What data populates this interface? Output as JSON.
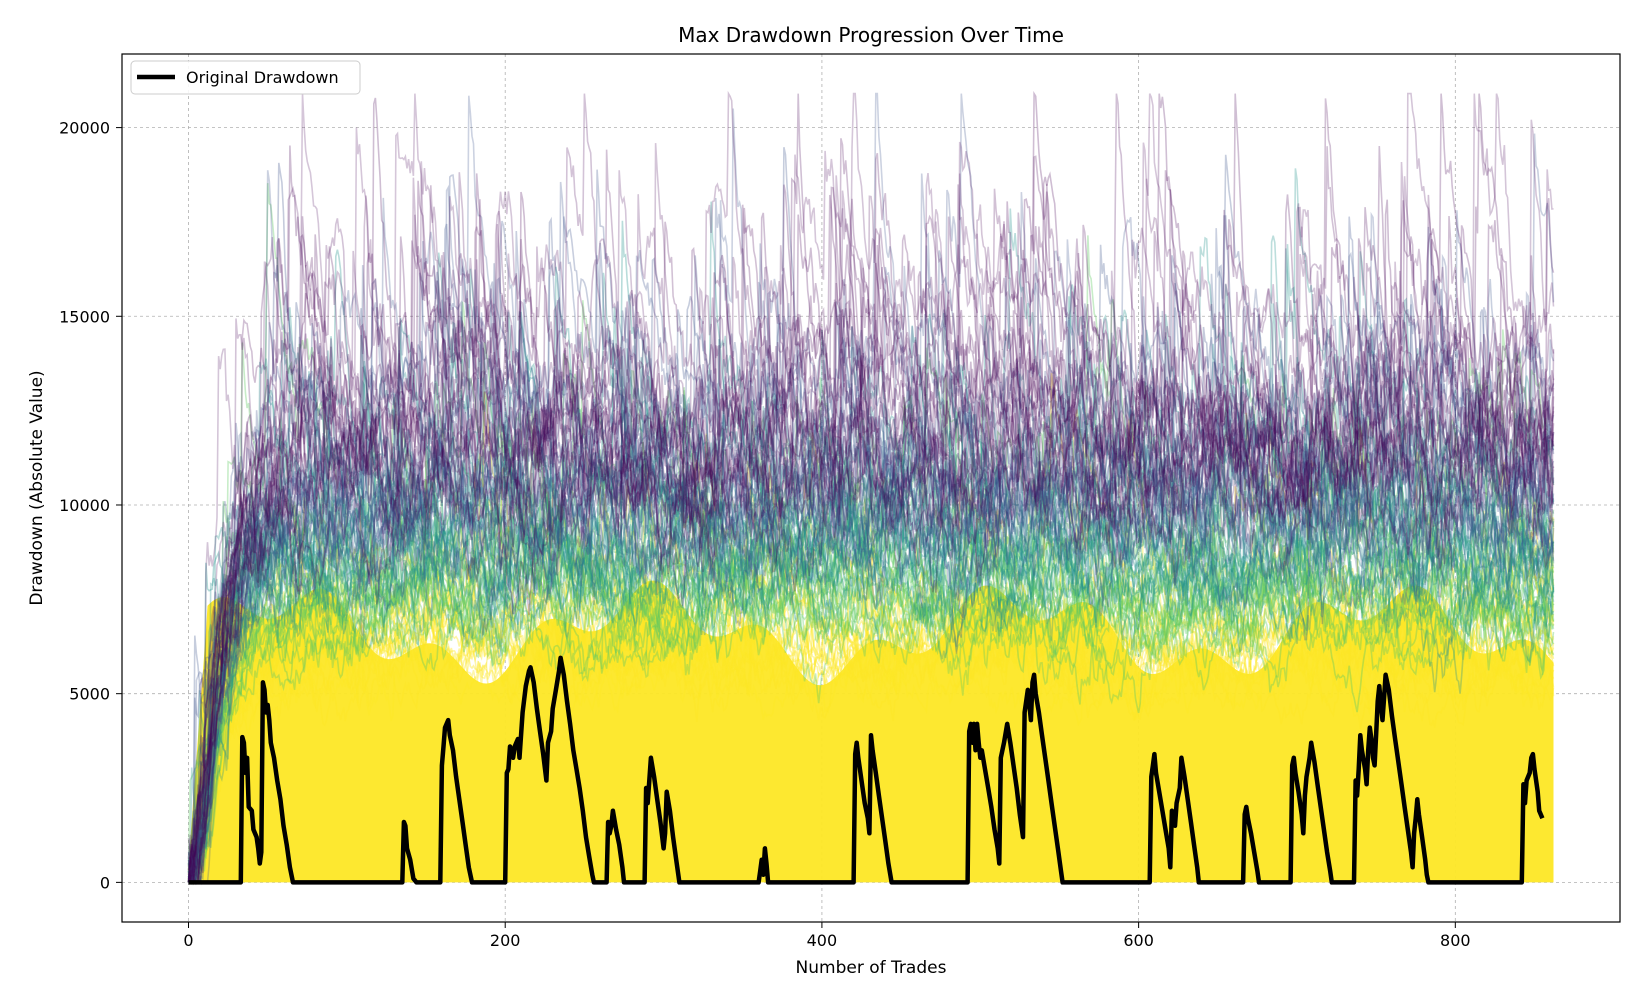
{
  "chart_data": {
    "type": "line",
    "title": "Max Drawdown Progression Over Time",
    "xlabel": "Number of Trades",
    "ylabel": "Drawdown (Absolute Value)",
    "xlim": [
      -42,
      904
    ],
    "ylim": [
      -1050,
      21950
    ],
    "x_ticks": [
      0,
      200,
      400,
      600,
      800
    ],
    "y_ticks": [
      0,
      5000,
      10000,
      15000,
      20000
    ],
    "grid": true,
    "legend": {
      "location": "upper-left",
      "entries": [
        {
          "label": "Original Drawdown",
          "color": "#000000"
        }
      ]
    },
    "simulations": {
      "description": "Monte Carlo resampled drawdown paths colored with viridis by final rank",
      "count_drawn": 110,
      "n_trades": 862,
      "typical_level_after_warmup": [
        0,
        14000
      ],
      "peak_observed": 20900,
      "colormap": [
        "#440154",
        "#3b528b",
        "#21918c",
        "#5ec962",
        "#fde725"
      ]
    },
    "series": [
      {
        "name": "Original Drawdown",
        "color": "#000000",
        "points": [
          [
            0,
            0
          ],
          [
            33,
            0
          ],
          [
            34,
            3850
          ],
          [
            35,
            3700
          ],
          [
            36,
            2900
          ],
          [
            37,
            3300
          ],
          [
            38,
            2000
          ],
          [
            40,
            1900
          ],
          [
            41,
            1400
          ],
          [
            43,
            1200
          ],
          [
            44,
            900
          ],
          [
            45,
            500
          ],
          [
            46,
            800
          ],
          [
            47,
            5300
          ],
          [
            48,
            5100
          ],
          [
            49,
            4500
          ],
          [
            50,
            4700
          ],
          [
            51,
            4300
          ],
          [
            52,
            3700
          ],
          [
            54,
            3300
          ],
          [
            56,
            2700
          ],
          [
            58,
            2200
          ],
          [
            60,
            1500
          ],
          [
            62,
            1000
          ],
          [
            64,
            400
          ],
          [
            66,
            0
          ],
          [
            135,
            0
          ],
          [
            136,
            1600
          ],
          [
            137,
            1500
          ],
          [
            138,
            900
          ],
          [
            140,
            600
          ],
          [
            142,
            100
          ],
          [
            144,
            0
          ],
          [
            159,
            0
          ],
          [
            160,
            3100
          ],
          [
            161,
            3600
          ],
          [
            162,
            4100
          ],
          [
            164,
            4300
          ],
          [
            165,
            3900
          ],
          [
            167,
            3500
          ],
          [
            169,
            2800
          ],
          [
            171,
            2200
          ],
          [
            173,
            1600
          ],
          [
            175,
            1000
          ],
          [
            177,
            400
          ],
          [
            179,
            0
          ],
          [
            200,
            0
          ],
          [
            201,
            2900
          ],
          [
            202,
            3000
          ],
          [
            203,
            3600
          ],
          [
            205,
            3300
          ],
          [
            206,
            3600
          ],
          [
            208,
            3800
          ],
          [
            209,
            3300
          ],
          [
            211,
            4500
          ],
          [
            213,
            5200
          ],
          [
            215,
            5600
          ],
          [
            216,
            5700
          ],
          [
            218,
            5300
          ],
          [
            220,
            4600
          ],
          [
            222,
            4000
          ],
          [
            224,
            3400
          ],
          [
            226,
            2700
          ],
          [
            227,
            3700
          ],
          [
            229,
            4000
          ],
          [
            230,
            4600
          ],
          [
            232,
            5100
          ],
          [
            234,
            5600
          ],
          [
            235,
            5950
          ],
          [
            237,
            5500
          ],
          [
            239,
            4800
          ],
          [
            241,
            4200
          ],
          [
            243,
            3500
          ],
          [
            245,
            3000
          ],
          [
            247,
            2500
          ],
          [
            249,
            1900
          ],
          [
            251,
            1200
          ],
          [
            253,
            700
          ],
          [
            255,
            200
          ],
          [
            256,
            0
          ],
          [
            264,
            0
          ],
          [
            265,
            1600
          ],
          [
            266,
            1300
          ],
          [
            267,
            1500
          ],
          [
            268,
            1900
          ],
          [
            270,
            1400
          ],
          [
            272,
            1000
          ],
          [
            274,
            400
          ],
          [
            275,
            0
          ],
          [
            288,
            0
          ],
          [
            289,
            2500
          ],
          [
            290,
            2100
          ],
          [
            291,
            2700
          ],
          [
            292,
            3300
          ],
          [
            294,
            2800
          ],
          [
            296,
            2200
          ],
          [
            298,
            1600
          ],
          [
            300,
            900
          ],
          [
            301,
            1300
          ],
          [
            302,
            2400
          ],
          [
            304,
            1900
          ],
          [
            306,
            1200
          ],
          [
            308,
            600
          ],
          [
            310,
            0
          ],
          [
            360,
            0
          ],
          [
            361,
            300
          ],
          [
            362,
            600
          ],
          [
            363,
            200
          ],
          [
            364,
            900
          ],
          [
            365,
            500
          ],
          [
            366,
            0
          ],
          [
            420,
            0
          ],
          [
            421,
            3400
          ],
          [
            422,
            3700
          ],
          [
            423,
            3300
          ],
          [
            425,
            2700
          ],
          [
            427,
            2100
          ],
          [
            429,
            1700
          ],
          [
            430,
            1300
          ],
          [
            431,
            3900
          ],
          [
            432,
            3500
          ],
          [
            434,
            2900
          ],
          [
            436,
            2300
          ],
          [
            438,
            1700
          ],
          [
            440,
            1100
          ],
          [
            442,
            500
          ],
          [
            444,
            0
          ],
          [
            492,
            0
          ],
          [
            493,
            4000
          ],
          [
            494,
            4200
          ],
          [
            495,
            3700
          ],
          [
            496,
            4200
          ],
          [
            497,
            3500
          ],
          [
            498,
            4200
          ],
          [
            499,
            3700
          ],
          [
            500,
            3300
          ],
          [
            501,
            3500
          ],
          [
            503,
            3000
          ],
          [
            505,
            2500
          ],
          [
            507,
            2000
          ],
          [
            509,
            1400
          ],
          [
            511,
            900
          ],
          [
            512,
            500
          ],
          [
            513,
            3300
          ],
          [
            515,
            3700
          ],
          [
            517,
            4200
          ],
          [
            519,
            3700
          ],
          [
            521,
            3100
          ],
          [
            523,
            2500
          ],
          [
            525,
            1800
          ],
          [
            527,
            1200
          ],
          [
            528,
            4500
          ],
          [
            530,
            5100
          ],
          [
            531,
            4700
          ],
          [
            532,
            4300
          ],
          [
            533,
            5300
          ],
          [
            534,
            5500
          ],
          [
            535,
            5000
          ],
          [
            537,
            4500
          ],
          [
            539,
            3900
          ],
          [
            541,
            3300
          ],
          [
            543,
            2700
          ],
          [
            545,
            2100
          ],
          [
            547,
            1500
          ],
          [
            549,
            900
          ],
          [
            551,
            300
          ],
          [
            552,
            0
          ],
          [
            607,
            0
          ],
          [
            608,
            2800
          ],
          [
            609,
            3100
          ],
          [
            610,
            3400
          ],
          [
            611,
            2900
          ],
          [
            613,
            2400
          ],
          [
            615,
            1900
          ],
          [
            617,
            1400
          ],
          [
            619,
            900
          ],
          [
            620,
            400
          ],
          [
            621,
            1900
          ],
          [
            622,
            1700
          ],
          [
            623,
            1500
          ],
          [
            624,
            2100
          ],
          [
            626,
            2500
          ],
          [
            627,
            3300
          ],
          [
            629,
            2800
          ],
          [
            631,
            2200
          ],
          [
            633,
            1600
          ],
          [
            635,
            1000
          ],
          [
            637,
            400
          ],
          [
            638,
            0
          ],
          [
            666,
            0
          ],
          [
            667,
            1800
          ],
          [
            668,
            2000
          ],
          [
            669,
            1700
          ],
          [
            671,
            1300
          ],
          [
            673,
            800
          ],
          [
            675,
            300
          ],
          [
            676,
            0
          ],
          [
            696,
            0
          ],
          [
            697,
            3100
          ],
          [
            698,
            3300
          ],
          [
            699,
            2900
          ],
          [
            701,
            2400
          ],
          [
            703,
            1800
          ],
          [
            704,
            1300
          ],
          [
            705,
            2300
          ],
          [
            706,
            2800
          ],
          [
            708,
            3300
          ],
          [
            709,
            3700
          ],
          [
            711,
            3200
          ],
          [
            713,
            2600
          ],
          [
            715,
            2000
          ],
          [
            717,
            1400
          ],
          [
            719,
            800
          ],
          [
            721,
            300
          ],
          [
            722,
            0
          ],
          [
            736,
            0
          ],
          [
            737,
            2700
          ],
          [
            738,
            2300
          ],
          [
            739,
            3000
          ],
          [
            740,
            3900
          ],
          [
            741,
            3500
          ],
          [
            743,
            3000
          ],
          [
            744,
            2600
          ],
          [
            745,
            3500
          ],
          [
            746,
            4100
          ],
          [
            747,
            3800
          ],
          [
            748,
            3300
          ],
          [
            749,
            3100
          ],
          [
            750,
            3900
          ],
          [
            751,
            4800
          ],
          [
            752,
            5200
          ],
          [
            753,
            4700
          ],
          [
            754,
            4300
          ],
          [
            755,
            4900
          ],
          [
            756,
            5500
          ],
          [
            758,
            5100
          ],
          [
            760,
            4400
          ],
          [
            762,
            3800
          ],
          [
            764,
            3200
          ],
          [
            766,
            2600
          ],
          [
            768,
            2000
          ],
          [
            770,
            1400
          ],
          [
            772,
            800
          ],
          [
            773,
            400
          ],
          [
            774,
            1300
          ],
          [
            775,
            1700
          ],
          [
            776,
            2200
          ],
          [
            777,
            1800
          ],
          [
            779,
            1200
          ],
          [
            781,
            600
          ],
          [
            782,
            200
          ],
          [
            783,
            0
          ],
          [
            842,
            0
          ],
          [
            843,
            2600
          ],
          [
            844,
            2100
          ],
          [
            845,
            2700
          ],
          [
            847,
            2900
          ],
          [
            848,
            3300
          ],
          [
            849,
            3400
          ],
          [
            850,
            3000
          ],
          [
            852,
            2400
          ],
          [
            853,
            1900
          ],
          [
            855,
            1700
          ]
        ]
      }
    ]
  }
}
